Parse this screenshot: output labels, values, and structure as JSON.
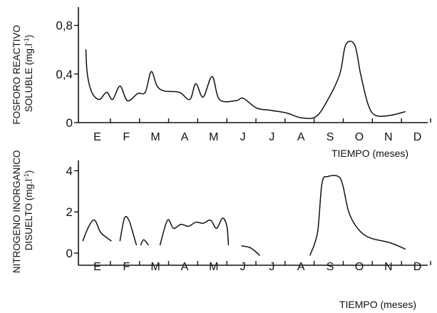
{
  "chart_data": [
    {
      "type": "line",
      "ylabel_lines": [
        "FOSFORO REACTIVO",
        "SOLUBLE (mg.l",
        "-1",
        ")"
      ],
      "xlabel": "TIEMPO (meses)",
      "categories": [
        "E",
        "F",
        "M",
        "A",
        "M",
        "J",
        "J",
        "A",
        "S",
        "O",
        "N",
        "D"
      ],
      "y_ticks": [
        {
          "label": "0",
          "value": 0
        },
        {
          "label": "0,4",
          "value": 0.4
        },
        {
          "label": "0,8",
          "value": 0.8
        }
      ],
      "ylim": [
        0,
        0.95
      ],
      "xlim": [
        0,
        12
      ],
      "series": [
        {
          "segments": [
            [
              [
                0.25,
                0.6
              ],
              [
                0.3,
                0.4
              ],
              [
                0.45,
                0.25
              ],
              [
                0.7,
                0.19
              ],
              [
                0.95,
                0.25
              ],
              [
                1.15,
                0.19
              ],
              [
                1.4,
                0.3
              ],
              [
                1.65,
                0.18
              ],
              [
                2.0,
                0.24
              ],
              [
                2.25,
                0.25
              ],
              [
                2.45,
                0.42
              ],
              [
                2.65,
                0.3
              ],
              [
                2.9,
                0.26
              ],
              [
                3.4,
                0.25
              ],
              [
                3.75,
                0.19
              ],
              [
                3.95,
                0.32
              ],
              [
                4.2,
                0.21
              ],
              [
                4.5,
                0.38
              ],
              [
                4.75,
                0.19
              ],
              [
                5.3,
                0.18
              ],
              [
                5.55,
                0.2
              ],
              [
                6.0,
                0.12
              ],
              [
                6.5,
                0.1
              ],
              [
                7.0,
                0.08
              ],
              [
                7.5,
                0.04
              ],
              [
                8.0,
                0.05
              ],
              [
                8.4,
                0.19
              ],
              [
                8.8,
                0.4
              ],
              [
                9.0,
                0.64
              ],
              [
                9.3,
                0.64
              ],
              [
                9.5,
                0.4
              ],
              [
                9.75,
                0.15
              ],
              [
                10.0,
                0.06
              ],
              [
                10.5,
                0.06
              ],
              [
                11.0,
                0.09
              ]
            ]
          ]
        }
      ]
    },
    {
      "type": "line",
      "ylabel_lines": [
        "NITROGENO INORGANICO",
        "DISUELTO (mg.l",
        "-1",
        ")"
      ],
      "xlabel": "TIEMPO (meses)",
      "categories": [
        "E",
        "F",
        "M",
        "A",
        "M",
        "J",
        "J",
        "A",
        "S",
        "O",
        "N",
        "D"
      ],
      "y_ticks": [
        {
          "label": "0",
          "value": 0
        },
        {
          "label": "2",
          "value": 2
        },
        {
          "label": "4",
          "value": 4
        }
      ],
      "ylim": [
        0,
        4.5
      ],
      "xlim": [
        0,
        12
      ],
      "series": [
        {
          "segments": [
            [
              [
                0.15,
                0.6
              ],
              [
                0.35,
                1.3
              ],
              [
                0.55,
                1.6
              ],
              [
                0.75,
                1.0
              ],
              [
                1.1,
                0.6
              ]
            ],
            [
              [
                1.4,
                0.6
              ],
              [
                1.55,
                1.7
              ],
              [
                1.7,
                1.6
              ],
              [
                1.85,
                0.9
              ],
              [
                1.95,
                0.4
              ]
            ],
            [
              [
                2.1,
                0.4
              ],
              [
                2.2,
                0.65
              ],
              [
                2.35,
                0.4
              ]
            ],
            [
              [
                2.75,
                0.4
              ],
              [
                3.0,
                1.6
              ],
              [
                3.2,
                1.2
              ],
              [
                3.45,
                1.4
              ],
              [
                3.7,
                1.3
              ],
              [
                3.95,
                1.5
              ],
              [
                4.2,
                1.45
              ],
              [
                4.45,
                1.6
              ],
              [
                4.65,
                1.2
              ],
              [
                4.85,
                1.7
              ],
              [
                5.0,
                1.3
              ],
              [
                5.05,
                0.4
              ]
            ],
            [
              [
                5.5,
                0.35
              ],
              [
                5.8,
                0.25
              ],
              [
                6.1,
                -0.1
              ]
            ],
            [
              [
                7.8,
                -0.1
              ],
              [
                8.05,
                1.0
              ],
              [
                8.2,
                3.4
              ],
              [
                8.4,
                3.72
              ],
              [
                8.75,
                3.72
              ],
              [
                8.9,
                3.3
              ],
              [
                9.1,
                2.0
              ],
              [
                9.4,
                1.2
              ],
              [
                9.8,
                0.75
              ],
              [
                10.5,
                0.5
              ],
              [
                11.0,
                0.2
              ]
            ]
          ]
        }
      ]
    }
  ]
}
